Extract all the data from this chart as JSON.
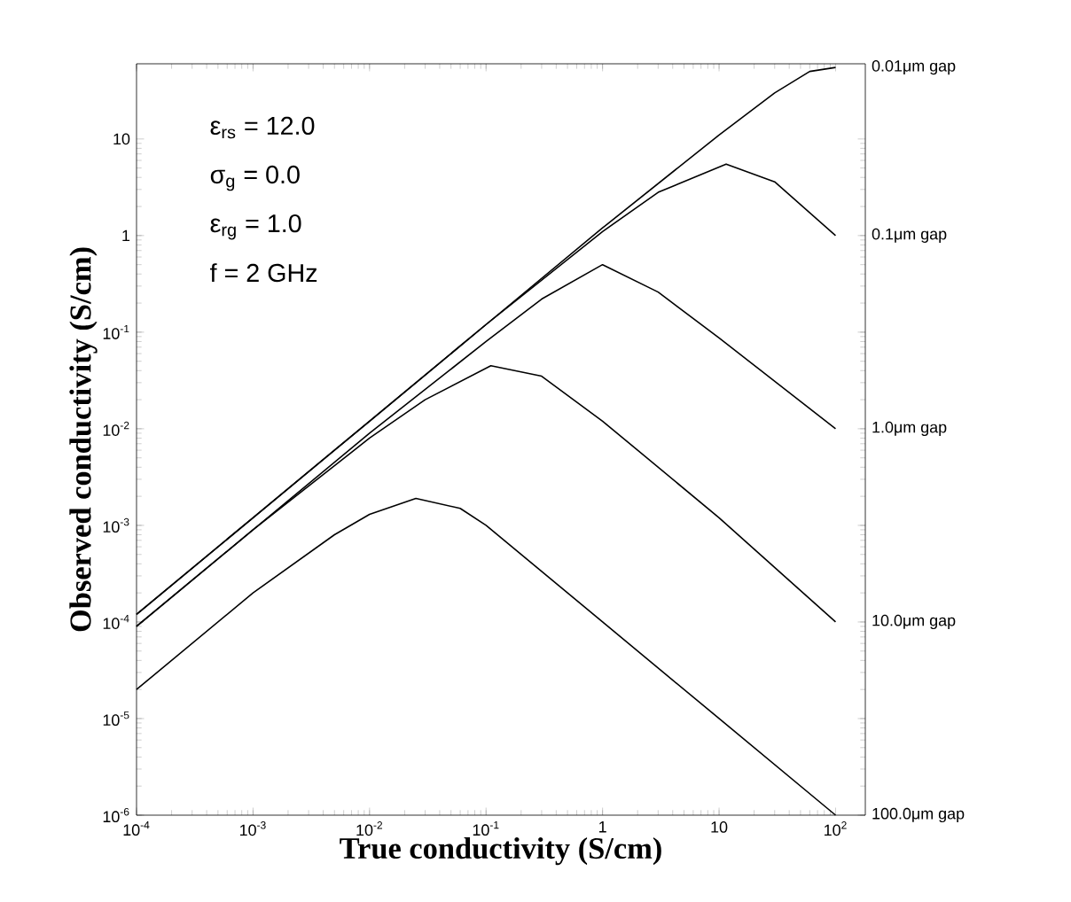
{
  "chart_data": {
    "type": "line",
    "xlabel": "True conductivity (S/cm)",
    "ylabel": "Observed conductivity (S/cm)",
    "log": "xy",
    "xlim": [
      0.0001,
      180
    ],
    "ylim": [
      1e-06,
      60
    ],
    "xticks": [
      {
        "value": 0.0001,
        "label": "10$^{-4}$"
      },
      {
        "value": 0.001,
        "label": "10$^{-3}$"
      },
      {
        "value": 0.01,
        "label": "10$^{-2}$"
      },
      {
        "value": 0.1,
        "label": "10$^{-1}$"
      },
      1,
      10,
      {
        "value": 100,
        "label": "10$^{2}$"
      }
    ],
    "yticks": [
      {
        "value": 1e-06,
        "label": "10$^{-6}$"
      },
      {
        "value": 1e-05,
        "label": "10$^{-5}$"
      },
      {
        "value": 0.0001,
        "label": "10$^{-4}$"
      },
      {
        "value": 0.001,
        "label": "10$^{-3}$"
      },
      {
        "value": 0.01,
        "label": "10$^{-2}$"
      },
      {
        "value": 0.1,
        "label": "10$^{-1}$"
      },
      1,
      10
    ],
    "grid": false,
    "legend": false,
    "marker": "none",
    "line_style": "solid",
    "annotations": [
      "ε$_{rs}$ = 12.0",
      "σ$_{g}$ = 0.0",
      "ε$_{rg}$ = 1.0",
      "f = 2 GHz"
    ],
    "series": [
      {
        "name": "0.01μm gap",
        "color": "#000000",
        "x": [
          0.0001,
          0.001,
          0.01,
          0.1,
          1,
          10,
          30,
          60,
          100
        ],
        "values": [
          0.00012,
          0.0012,
          0.012,
          0.12,
          1.2,
          11,
          30,
          50,
          55
        ]
      },
      {
        "name": "0.1μm gap",
        "color": "#000000",
        "x": [
          0.0001,
          0.001,
          0.01,
          0.1,
          1,
          3,
          11.5,
          30,
          100
        ],
        "values": [
          0.00012,
          0.0012,
          0.012,
          0.12,
          1.1,
          2.8,
          5.5,
          3.6,
          1.0
        ]
      },
      {
        "name": "1.0μm gap",
        "color": "#000000",
        "x": [
          0.0001,
          0.001,
          0.01,
          0.1,
          0.3,
          1,
          3,
          10,
          100
        ],
        "values": [
          9e-05,
          0.0009,
          0.009,
          0.08,
          0.22,
          0.5,
          0.26,
          0.087,
          0.01
        ]
      },
      {
        "name": "10.0μm gap",
        "color": "#000000",
        "x": [
          0.0001,
          0.001,
          0.01,
          0.03,
          0.11,
          0.3,
          1,
          10,
          100
        ],
        "values": [
          9e-05,
          0.0009,
          0.008,
          0.02,
          0.045,
          0.035,
          0.012,
          0.0012,
          0.0001
        ]
      },
      {
        "name": "100.0μm gap",
        "color": "#000000",
        "x": [
          0.0001,
          0.001,
          0.005,
          0.01,
          0.025,
          0.06,
          0.1,
          1,
          10,
          100
        ],
        "values": [
          2e-05,
          0.0002,
          0.0008,
          0.0013,
          0.0019,
          0.0015,
          0.001,
          0.0001,
          1e-05,
          1e-06
        ]
      }
    ]
  }
}
